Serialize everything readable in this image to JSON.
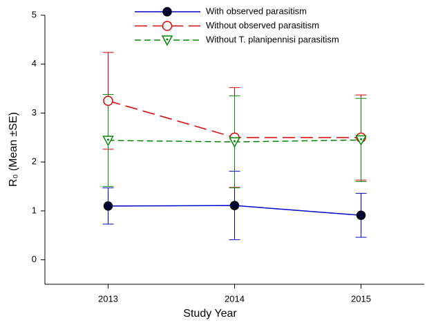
{
  "chart_data": {
    "type": "line",
    "x_label": "Study Year",
    "y_label": "R₀ (Mean ±SE)",
    "categories": [
      "2013",
      "2014",
      "2015"
    ],
    "ylim": [
      -0.5,
      5
    ],
    "yticks": [
      0,
      1,
      2,
      3,
      4,
      5
    ],
    "series": [
      {
        "name": "With observed parasitism",
        "color": "#0000cc",
        "marker": "filled-circle",
        "dash": "none",
        "values": [
          1.1,
          1.11,
          0.91
        ],
        "errors": [
          0.37,
          0.7,
          0.45
        ]
      },
      {
        "name": "Without observed parasitism",
        "color": "#dd0000",
        "marker": "open-circle",
        "dash": "18 8",
        "values": [
          3.25,
          2.5,
          2.5
        ],
        "errors": [
          0.99,
          1.02,
          0.87
        ]
      },
      {
        "name": "Without T. planipennisi parasitism",
        "color": "#008800",
        "marker": "open-triangle-down",
        "dash": "9 5",
        "values": [
          2.44,
          2.41,
          2.45
        ],
        "errors": [
          0.94,
          0.94,
          0.85
        ]
      }
    ]
  }
}
